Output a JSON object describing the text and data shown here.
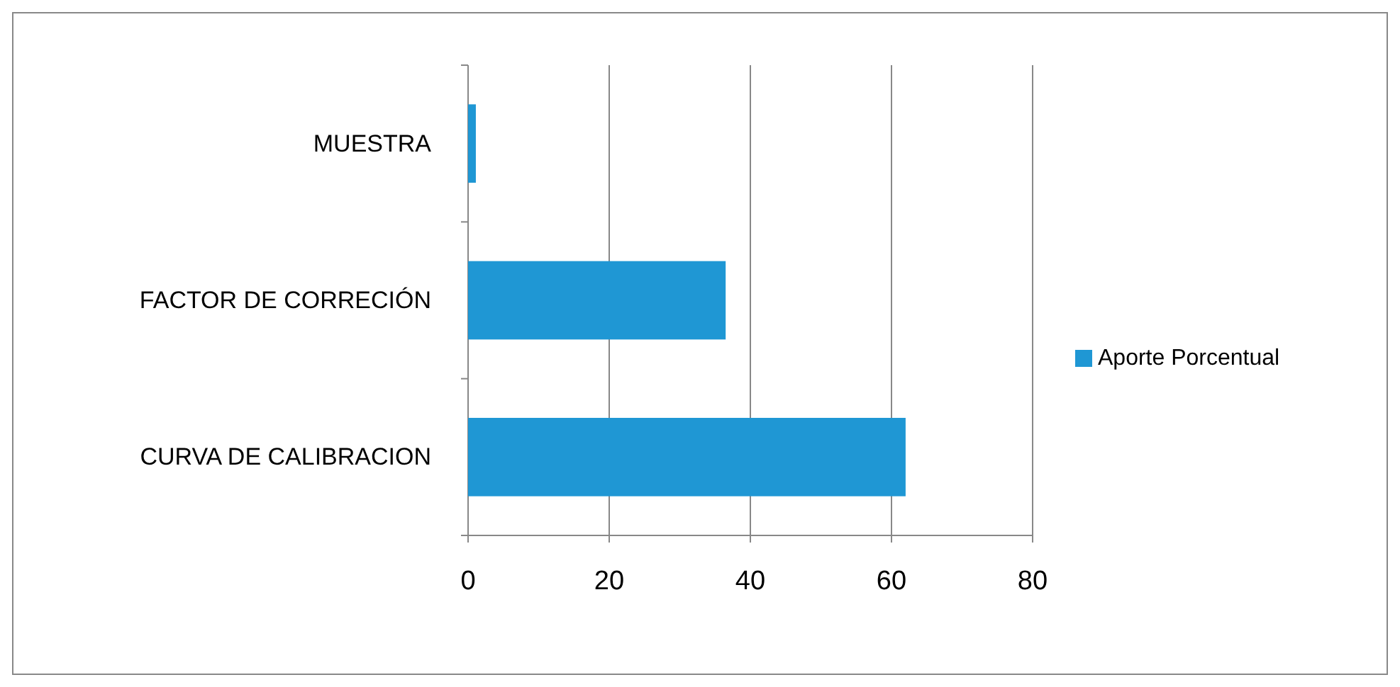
{
  "chart_data": {
    "type": "bar",
    "orientation": "horizontal",
    "categories": [
      "MUESTRA",
      "FACTOR DE CORRECIÓN",
      "CURVA DE CALIBRACION"
    ],
    "series": [
      {
        "name": "Aporte Porcentual",
        "color": "#1f97d4",
        "values": [
          1.1,
          36.5,
          62
        ]
      }
    ],
    "xlim": [
      0,
      80
    ],
    "xticks": [
      0,
      20,
      40,
      60,
      80
    ],
    "grid": "x",
    "legend": "right"
  }
}
